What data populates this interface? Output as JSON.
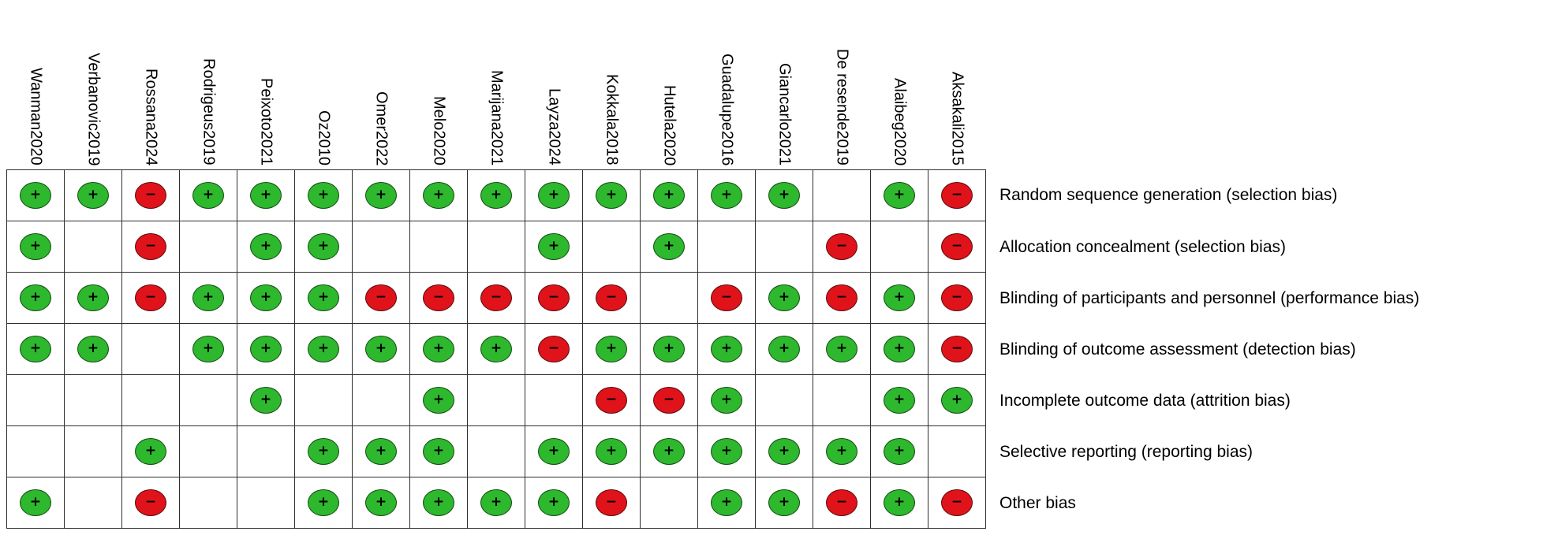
{
  "chart_data": {
    "type": "heatmap",
    "studies": [
      "Wanman2020",
      "Verbanovic2019",
      "Rossana2024",
      "Rodrigeus2019",
      "Peixoto2021",
      "Oz2010",
      "Omer2022",
      "Melo2020",
      "Marijana2021",
      "Layza2024",
      "Kokkala2018",
      "Hutela2020",
      "Guadalupe2016",
      "Giancarlo2021",
      "De resende2019",
      "Alaibeg2020",
      "Aksakali2015"
    ],
    "legend": {
      "low_risk": {
        "symbol": "+",
        "color": "#2db82d"
      },
      "high_risk": {
        "symbol": "−",
        "color": "#e0131b"
      }
    },
    "rows": [
      {
        "domain": "Random sequence generation (selection bias)",
        "values": [
          "+",
          "+",
          "-",
          "+",
          "+",
          "+",
          "+",
          "+",
          "+",
          "+",
          "+",
          "+",
          "+",
          "+",
          "",
          "+",
          "-"
        ]
      },
      {
        "domain": "Allocation concealment (selection bias)",
        "values": [
          "+",
          "",
          "-",
          "",
          "+",
          "+",
          "",
          "",
          "",
          "+",
          "",
          "+",
          "",
          "",
          "-",
          "",
          "-"
        ]
      },
      {
        "domain": "Blinding of participants and personnel (performance bias)",
        "values": [
          "+",
          "+",
          "-",
          "+",
          "+",
          "+",
          "-",
          "-",
          "-",
          "-",
          "-",
          "",
          "-",
          "+",
          "-",
          "+",
          "-"
        ]
      },
      {
        "domain": "Blinding of outcome assessment (detection bias)",
        "values": [
          "+",
          "+",
          "",
          "+",
          "+",
          "+",
          "+",
          "+",
          "+",
          "-",
          "+",
          "+",
          "+",
          "+",
          "+",
          "+",
          "-"
        ]
      },
      {
        "domain": "Incomplete outcome data (attrition bias)",
        "values": [
          "",
          "",
          "",
          "",
          "+",
          "",
          "",
          "+",
          "",
          "",
          "-",
          "-",
          "+",
          "",
          "",
          "+",
          "+"
        ]
      },
      {
        "domain": "Selective reporting (reporting bias)",
        "values": [
          "",
          "",
          "+",
          "",
          "",
          "+",
          "+",
          "+",
          "",
          "+",
          "+",
          "+",
          "+",
          "+",
          "+",
          "+",
          ""
        ]
      },
      {
        "domain": "Other bias",
        "values": [
          "+",
          "",
          "-",
          "",
          "",
          "+",
          "+",
          "+",
          "+",
          "+",
          "-",
          "",
          "+",
          "+",
          "-",
          "+",
          "-"
        ]
      }
    ]
  }
}
